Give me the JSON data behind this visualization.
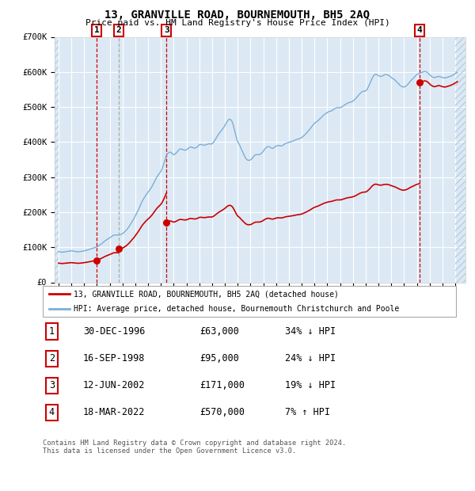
{
  "title": "13, GRANVILLE ROAD, BOURNEMOUTH, BH5 2AQ",
  "subtitle": "Price paid vs. HM Land Registry's House Price Index (HPI)",
  "background_color": "#ffffff",
  "plot_bg_color": "#dce9f5",
  "hatch_color": "#b8cfe0",
  "ylim": [
    0,
    700000
  ],
  "yticks": [
    0,
    100000,
    200000,
    300000,
    400000,
    500000,
    600000,
    700000
  ],
  "ytick_labels": [
    "£0",
    "£100K",
    "£200K",
    "£300K",
    "£400K",
    "£500K",
    "£600K",
    "£700K"
  ],
  "xlim_start": 1993.7,
  "xlim_end": 2025.8,
  "red_line_color": "#cc0000",
  "blue_line_color": "#7aaed6",
  "marker_color": "#cc0000",
  "vline_color_red": "#cc0000",
  "vline_color_gray": "#aaaaaa",
  "grid_color": "#ffffff",
  "transaction_dates": [
    1996.99,
    1998.71,
    2002.44,
    2022.21
  ],
  "transaction_prices": [
    63000,
    95000,
    171000,
    570000
  ],
  "transaction_labels": [
    "1",
    "2",
    "3",
    "4"
  ],
  "legend_line1": "13, GRANVILLE ROAD, BOURNEMOUTH, BH5 2AQ (detached house)",
  "legend_line2": "HPI: Average price, detached house, Bournemouth Christchurch and Poole",
  "table_data": [
    [
      "1",
      "30-DEC-1996",
      "£63,000",
      "34% ↓ HPI"
    ],
    [
      "2",
      "16-SEP-1998",
      "£95,000",
      "24% ↓ HPI"
    ],
    [
      "3",
      "12-JUN-2002",
      "£171,000",
      "19% ↓ HPI"
    ],
    [
      "4",
      "18-MAR-2022",
      "£570,000",
      "7% ↑ HPI"
    ]
  ],
  "footnote": "Contains HM Land Registry data © Crown copyright and database right 2024.\nThis data is licensed under the Open Government Licence v3.0.",
  "hpi_years": [
    1994.0,
    1994.083,
    1994.167,
    1994.25,
    1994.333,
    1994.417,
    1994.5,
    1994.583,
    1994.667,
    1994.75,
    1994.833,
    1994.917,
    1995.0,
    1995.083,
    1995.167,
    1995.25,
    1995.333,
    1995.417,
    1995.5,
    1995.583,
    1995.667,
    1995.75,
    1995.833,
    1995.917,
    1996.0,
    1996.083,
    1996.167,
    1996.25,
    1996.333,
    1996.417,
    1996.5,
    1996.583,
    1996.667,
    1996.75,
    1996.833,
    1996.917,
    1997.0,
    1997.083,
    1997.167,
    1997.25,
    1997.333,
    1997.417,
    1997.5,
    1997.583,
    1997.667,
    1997.75,
    1997.833,
    1997.917,
    1998.0,
    1998.083,
    1998.167,
    1998.25,
    1998.333,
    1998.417,
    1998.5,
    1998.583,
    1998.667,
    1998.75,
    1998.833,
    1998.917,
    1999.0,
    1999.083,
    1999.167,
    1999.25,
    1999.333,
    1999.417,
    1999.5,
    1999.583,
    1999.667,
    1999.75,
    1999.833,
    1999.917,
    2000.0,
    2000.083,
    2000.167,
    2000.25,
    2000.333,
    2000.417,
    2000.5,
    2000.583,
    2000.667,
    2000.75,
    2000.833,
    2000.917,
    2001.0,
    2001.083,
    2001.167,
    2001.25,
    2001.333,
    2001.417,
    2001.5,
    2001.583,
    2001.667,
    2001.75,
    2001.833,
    2001.917,
    2002.0,
    2002.083,
    2002.167,
    2002.25,
    2002.333,
    2002.417,
    2002.5,
    2002.583,
    2002.667,
    2002.75,
    2002.833,
    2002.917,
    2003.0,
    2003.083,
    2003.167,
    2003.25,
    2003.333,
    2003.417,
    2003.5,
    2003.583,
    2003.667,
    2003.75,
    2003.833,
    2003.917,
    2004.0,
    2004.083,
    2004.167,
    2004.25,
    2004.333,
    2004.417,
    2004.5,
    2004.583,
    2004.667,
    2004.75,
    2004.833,
    2004.917,
    2005.0,
    2005.083,
    2005.167,
    2005.25,
    2005.333,
    2005.417,
    2005.5,
    2005.583,
    2005.667,
    2005.75,
    2005.833,
    2005.917,
    2006.0,
    2006.083,
    2006.167,
    2006.25,
    2006.333,
    2006.417,
    2006.5,
    2006.583,
    2006.667,
    2006.75,
    2006.833,
    2006.917,
    2007.0,
    2007.083,
    2007.167,
    2007.25,
    2007.333,
    2007.417,
    2007.5,
    2007.583,
    2007.667,
    2007.75,
    2007.833,
    2007.917,
    2008.0,
    2008.083,
    2008.167,
    2008.25,
    2008.333,
    2008.417,
    2008.5,
    2008.583,
    2008.667,
    2008.75,
    2008.833,
    2008.917,
    2009.0,
    2009.083,
    2009.167,
    2009.25,
    2009.333,
    2009.417,
    2009.5,
    2009.583,
    2009.667,
    2009.75,
    2009.833,
    2009.917,
    2010.0,
    2010.083,
    2010.167,
    2010.25,
    2010.333,
    2010.417,
    2010.5,
    2010.583,
    2010.667,
    2010.75,
    2010.833,
    2010.917,
    2011.0,
    2011.083,
    2011.167,
    2011.25,
    2011.333,
    2011.417,
    2011.5,
    2011.583,
    2011.667,
    2011.75,
    2011.833,
    2011.917,
    2012.0,
    2012.083,
    2012.167,
    2012.25,
    2012.333,
    2012.417,
    2012.5,
    2012.583,
    2012.667,
    2012.75,
    2012.833,
    2012.917,
    2013.0,
    2013.083,
    2013.167,
    2013.25,
    2013.333,
    2013.417,
    2013.5,
    2013.583,
    2013.667,
    2013.75,
    2013.833,
    2013.917,
    2014.0,
    2014.083,
    2014.167,
    2014.25,
    2014.333,
    2014.417,
    2014.5,
    2014.583,
    2014.667,
    2014.75,
    2014.833,
    2014.917,
    2015.0,
    2015.083,
    2015.167,
    2015.25,
    2015.333,
    2015.417,
    2015.5,
    2015.583,
    2015.667,
    2015.75,
    2015.833,
    2015.917,
    2016.0,
    2016.083,
    2016.167,
    2016.25,
    2016.333,
    2016.417,
    2016.5,
    2016.583,
    2016.667,
    2016.75,
    2016.833,
    2016.917,
    2017.0,
    2017.083,
    2017.167,
    2017.25,
    2017.333,
    2017.417,
    2017.5,
    2017.583,
    2017.667,
    2017.75,
    2017.833,
    2017.917,
    2018.0,
    2018.083,
    2018.167,
    2018.25,
    2018.333,
    2018.417,
    2018.5,
    2018.583,
    2018.667,
    2018.75,
    2018.833,
    2018.917,
    2019.0,
    2019.083,
    2019.167,
    2019.25,
    2019.333,
    2019.417,
    2019.5,
    2019.583,
    2019.667,
    2019.75,
    2019.833,
    2019.917,
    2020.0,
    2020.083,
    2020.167,
    2020.25,
    2020.333,
    2020.417,
    2020.5,
    2020.583,
    2020.667,
    2020.75,
    2020.833,
    2020.917,
    2021.0,
    2021.083,
    2021.167,
    2021.25,
    2021.333,
    2021.417,
    2021.5,
    2021.583,
    2021.667,
    2021.75,
    2021.833,
    2021.917,
    2022.0,
    2022.083,
    2022.167,
    2022.25,
    2022.333,
    2022.417,
    2022.5,
    2022.583,
    2022.667,
    2022.75,
    2022.833,
    2022.917,
    2023.0,
    2023.083,
    2023.167,
    2023.25,
    2023.333,
    2023.417,
    2023.5,
    2023.583,
    2023.667,
    2023.75,
    2023.833,
    2023.917,
    2024.0,
    2024.083,
    2024.167,
    2024.25,
    2024.333,
    2024.417,
    2024.5,
    2024.583,
    2024.667,
    2024.75,
    2024.833,
    2024.917,
    2025.0,
    2025.083,
    2025.167
  ],
  "hpi_values": [
    88000,
    87000,
    86500,
    86000,
    86000,
    86500,
    87000,
    87500,
    88000,
    88500,
    89000,
    89500,
    90000,
    89500,
    89000,
    88500,
    88000,
    87500,
    87000,
    87000,
    87500,
    88000,
    88500,
    89000,
    90000,
    90500,
    91000,
    92000,
    93000,
    94000,
    95000,
    96000,
    97000,
    98000,
    99000,
    100000,
    101000,
    103000,
    105000,
    107000,
    109000,
    111500,
    114000,
    116500,
    119000,
    121000,
    123000,
    125000,
    127000,
    129000,
    131000,
    133000,
    135000,
    135000,
    135000,
    135000,
    135000,
    135500,
    136000,
    137000,
    139000,
    141000,
    144000,
    147000,
    150000,
    154000,
    158000,
    163000,
    168000,
    173000,
    178000,
    183000,
    189000,
    195000,
    201000,
    207000,
    214000,
    221000,
    228000,
    234000,
    239000,
    244000,
    249000,
    253000,
    257000,
    261000,
    265000,
    270000,
    275000,
    281000,
    287000,
    293000,
    299000,
    304000,
    308000,
    312000,
    317000,
    323000,
    331000,
    340000,
    350000,
    361000,
    366000,
    369000,
    371000,
    371000,
    369000,
    366000,
    364000,
    365000,
    368000,
    371000,
    375000,
    378000,
    380000,
    380000,
    379000,
    378000,
    377000,
    377000,
    378000,
    380000,
    383000,
    385000,
    386000,
    385000,
    384000,
    383000,
    383000,
    384000,
    386000,
    389000,
    392000,
    393000,
    393000,
    392000,
    391000,
    391000,
    392000,
    393000,
    394000,
    395000,
    395000,
    394000,
    395000,
    398000,
    402000,
    407000,
    412000,
    417000,
    422000,
    426000,
    430000,
    434000,
    438000,
    442000,
    447000,
    452000,
    458000,
    462000,
    465000,
    465000,
    462000,
    457000,
    447000,
    435000,
    422000,
    410000,
    401000,
    396000,
    390000,
    383000,
    376000,
    370000,
    363000,
    357000,
    352000,
    349000,
    348000,
    348000,
    349000,
    351000,
    355000,
    359000,
    362000,
    364000,
    364000,
    364000,
    364000,
    365000,
    367000,
    370000,
    374000,
    378000,
    382000,
    385000,
    387000,
    387000,
    386000,
    384000,
    382000,
    382000,
    384000,
    386000,
    388000,
    390000,
    390000,
    390000,
    389000,
    389000,
    390000,
    392000,
    394000,
    396000,
    397000,
    398000,
    399000,
    400000,
    401000,
    402000,
    403000,
    404000,
    406000,
    407000,
    408000,
    409000,
    410000,
    411000,
    413000,
    415000,
    418000,
    421000,
    424000,
    427000,
    431000,
    434000,
    438000,
    442000,
    446000,
    450000,
    453000,
    456000,
    458000,
    460000,
    463000,
    466000,
    469000,
    472000,
    475000,
    478000,
    480000,
    482000,
    484000,
    486000,
    487000,
    488000,
    489000,
    491000,
    493000,
    495000,
    497000,
    498000,
    498000,
    498000,
    498000,
    499000,
    501000,
    503000,
    505000,
    507000,
    509000,
    511000,
    512000,
    513000,
    514000,
    515000,
    517000,
    519000,
    522000,
    525000,
    529000,
    532000,
    536000,
    539000,
    542000,
    544000,
    545000,
    545000,
    546000,
    549000,
    554000,
    560000,
    567000,
    574000,
    581000,
    587000,
    591000,
    593000,
    593000,
    591000,
    589000,
    588000,
    587000,
    588000,
    589000,
    591000,
    592000,
    592000,
    592000,
    591000,
    589000,
    587000,
    584000,
    582000,
    580000,
    578000,
    575000,
    572000,
    569000,
    566000,
    562000,
    560000,
    558000,
    557000,
    557000,
    558000,
    560000,
    563000,
    566000,
    570000,
    574000,
    577000,
    580000,
    583000,
    586000,
    590000,
    592000,
    594000,
    596000,
    597000,
    598000,
    599000,
    600000,
    601000,
    601000,
    600000,
    598000,
    595000,
    592000,
    589000,
    587000,
    585000,
    584000,
    584000,
    585000,
    586000,
    587000,
    587000,
    586000,
    585000,
    584000,
    583000,
    583000,
    583000,
    584000,
    585000,
    586000,
    587000,
    588000,
    590000,
    591000,
    593000,
    595000,
    597000,
    599000
  ]
}
